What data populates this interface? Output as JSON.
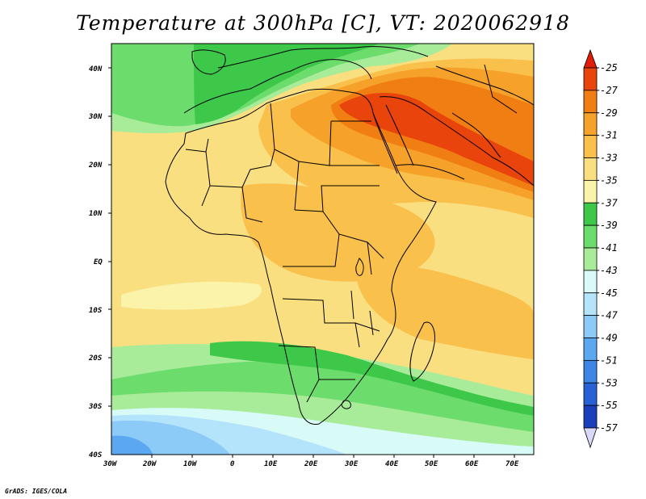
{
  "title": "Temperature at 300hPa [C], VT: 2020062918",
  "credit": "GrADS: IGES/COLA",
  "lat_labels": [
    "40N",
    "30N",
    "20N",
    "10N",
    "EQ",
    "10S",
    "20S",
    "30S",
    "40S"
  ],
  "lon_labels": [
    "30W",
    "20W",
    "10W",
    "0",
    "10E",
    "20E",
    "30E",
    "40E",
    "50E",
    "60E",
    "70E"
  ],
  "colorbar": {
    "labels": [
      "-25",
      "-27",
      "-29",
      "-31",
      "-33",
      "-35",
      "-37",
      "-39",
      "-41",
      "-43",
      "-45",
      "-47",
      "-49",
      "-51",
      "-53",
      "-55",
      "-57"
    ],
    "colors": [
      "#e8440c",
      "#f07e12",
      "#f6a22a",
      "#f9c04c",
      "#fadf80",
      "#fbf3aa",
      "#3dc84a",
      "#6cdc6c",
      "#a8ec9a",
      "#d8fbf8",
      "#b4e4fb",
      "#8ccbf7",
      "#5ca8f0",
      "#3c86e6",
      "#2860d6",
      "#1a3fbc",
      "#102a86"
    ],
    "top_cap_color": "#e01e08",
    "bottom_cap_color": "#d8d8f8"
  },
  "field_colors": {
    "hot": "#e8440c",
    "warm2": "#f07e12",
    "warm1": "#f6a22a",
    "mid": "#f9c04c",
    "base": "#fadf80",
    "pale": "#fbf3aa",
    "green_dark": "#3dc84a",
    "green_mid": "#6cdc6c",
    "green_light": "#a8ec9a",
    "cyan": "#d8fbf8",
    "blue1": "#b4e4fb",
    "blue2": "#8ccbf7",
    "blue3": "#5ca8f0"
  }
}
